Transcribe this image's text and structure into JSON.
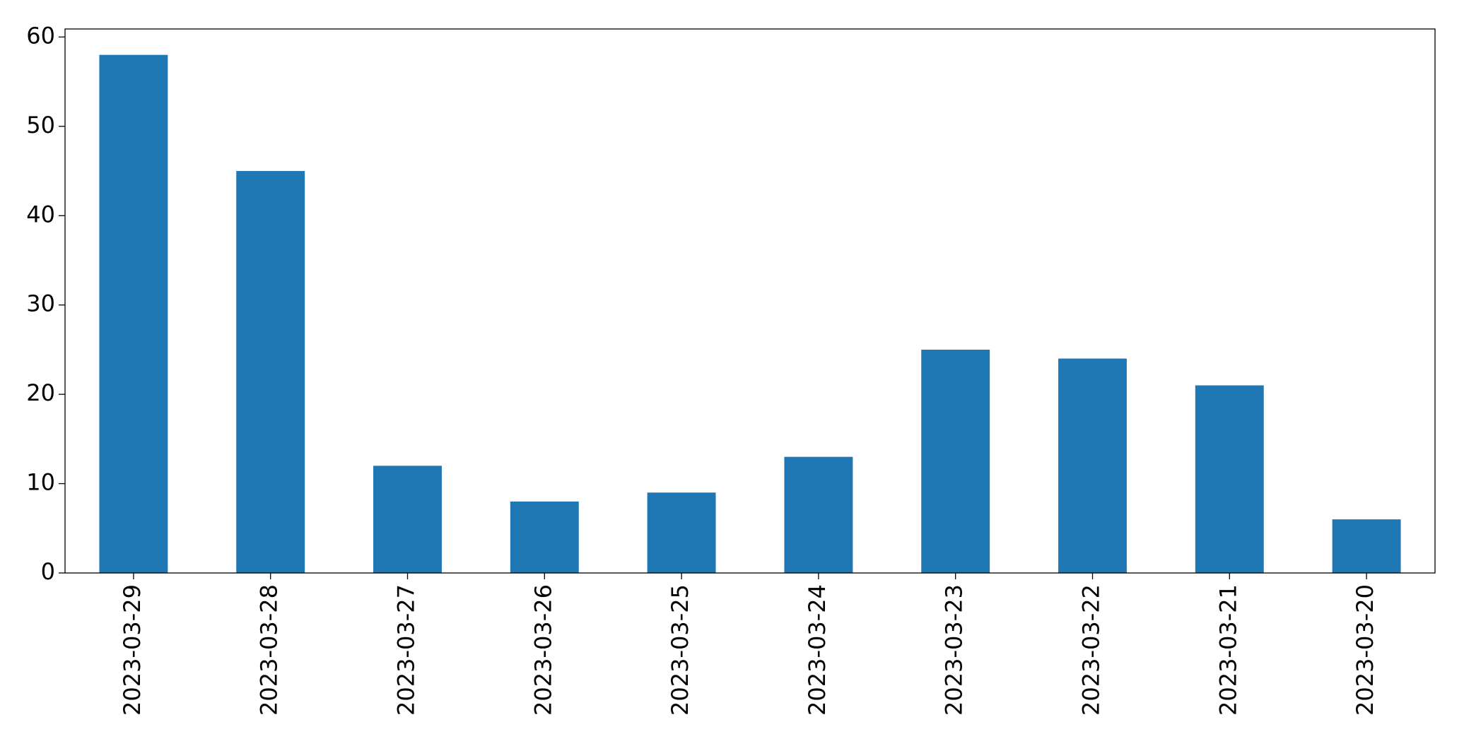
{
  "chart_data": {
    "type": "bar",
    "categories": [
      "2023-03-29",
      "2023-03-28",
      "2023-03-27",
      "2023-03-26",
      "2023-03-25",
      "2023-03-24",
      "2023-03-23",
      "2023-03-22",
      "2023-03-21",
      "2023-03-20"
    ],
    "values": [
      58,
      45,
      12,
      8,
      9,
      13,
      25,
      24,
      21,
      6
    ],
    "color": "#1f77b4",
    "ylim": [
      0,
      60.9
    ],
    "yticks": [
      0,
      10,
      20,
      30,
      40,
      50,
      60
    ],
    "grid": false
  }
}
